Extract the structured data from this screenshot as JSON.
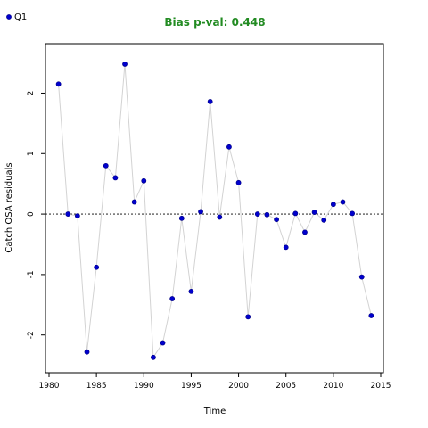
{
  "chart_data": {
    "type": "scatter",
    "title": "Bias p-val: 0.448",
    "title_color": "#228B22",
    "xlabel": "Time",
    "ylabel": "Catch OSA residuals",
    "xlim": [
      1980,
      2015
    ],
    "ylim": [
      -2.55,
      2.7
    ],
    "x_ticks": [
      1980,
      1985,
      1990,
      1995,
      2000,
      2005,
      2010,
      2015
    ],
    "y_ticks": [
      -2,
      -1,
      0,
      1,
      2
    ],
    "reference_line": 0,
    "legend": {
      "position": "top-left",
      "entries": [
        "Q1"
      ]
    },
    "series": [
      {
        "name": "Q1",
        "point_color": "#0000CD",
        "point_edge": "#000080",
        "line_color": "#D3D3D3",
        "x": [
          1981,
          1982,
          1983,
          1984,
          1985,
          1986,
          1987,
          1988,
          1989,
          1990,
          1991,
          1992,
          1993,
          1994,
          1995,
          1996,
          1997,
          1998,
          1999,
          2000,
          2001,
          2002,
          2003,
          2004,
          2005,
          2006,
          2007,
          2008,
          2009,
          2010,
          2011,
          2012,
          2013,
          2014
        ],
        "y": [
          2.15,
          0.0,
          -0.03,
          -2.28,
          -0.88,
          0.8,
          0.6,
          2.48,
          0.2,
          0.55,
          -2.37,
          -2.13,
          -1.4,
          -0.07,
          -1.28,
          0.04,
          1.86,
          -0.05,
          1.11,
          0.52,
          -1.7,
          0.0,
          -0.01,
          -0.09,
          -0.55,
          0.01,
          -0.3,
          0.03,
          -0.1,
          0.16,
          0.2,
          0.01,
          -1.04,
          -1.68
        ]
      }
    ]
  }
}
